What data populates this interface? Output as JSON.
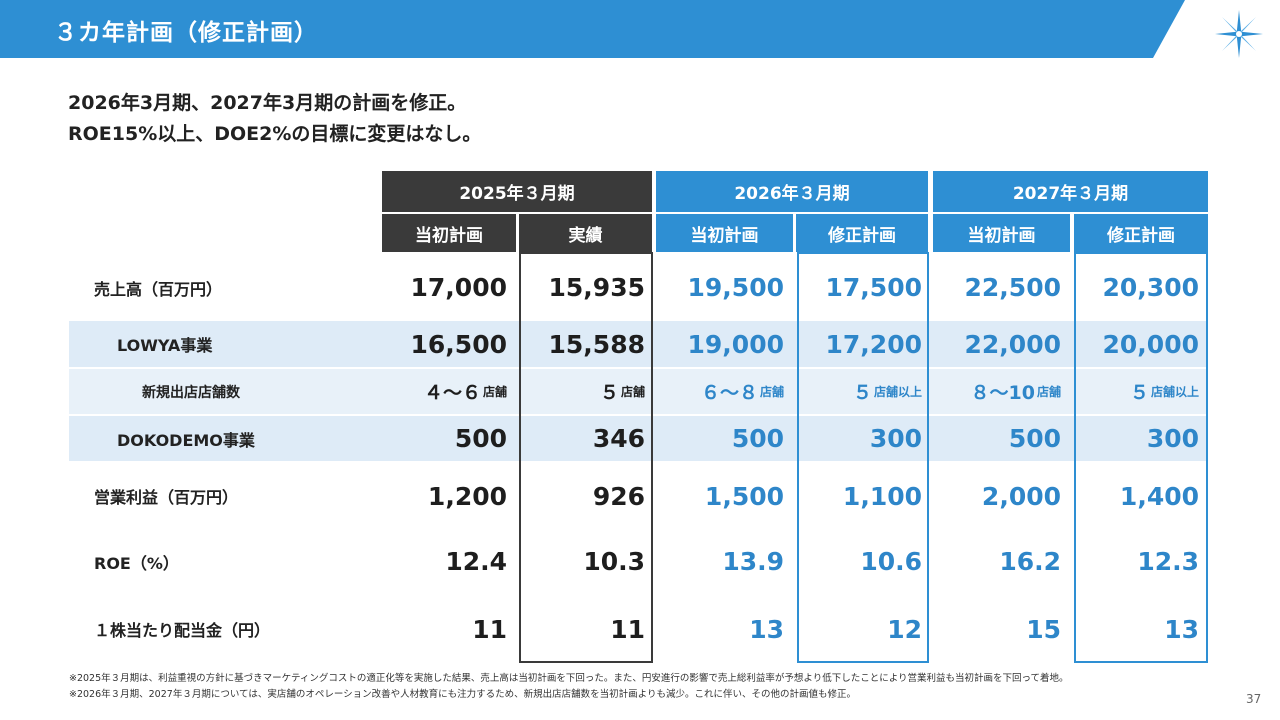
{
  "header": {
    "title": "３カ年計画（修正計画）"
  },
  "lead": {
    "line1": "2026年3月期、2027年3月期の計画を修正。",
    "line2": "ROE15%以上、DOE2%の目標に変更はなし。"
  },
  "table": {
    "years": [
      "2025年３月期",
      "2026年３月期",
      "2027年３月期"
    ],
    "subheaders": [
      "当初計画",
      "実績",
      "当初計画",
      "修正計画",
      "当初計画",
      "修正計画"
    ],
    "rows": [
      {
        "label": "売上高（百万円）",
        "values": [
          "17,000",
          "15,935",
          "19,500",
          "17,500",
          "22,500",
          "20,300"
        ]
      },
      {
        "label": "LOWYA事業",
        "values": [
          "16,500",
          "15,588",
          "19,000",
          "17,200",
          "22,000",
          "20,000"
        ]
      },
      {
        "label": "新規出店店舗数",
        "values": [
          "４～６",
          "５",
          "６～８",
          "５",
          "８～10",
          "５"
        ],
        "suffixes": [
          "店舗",
          "店舗",
          "店舗",
          "店舗以上",
          "店舗",
          "店舗以上"
        ]
      },
      {
        "label": "DOKODEMO事業",
        "values": [
          "500",
          "346",
          "500",
          "300",
          "500",
          "300"
        ]
      },
      {
        "label": "営業利益（百万円）",
        "values": [
          "1,200",
          "926",
          "1,500",
          "1,100",
          "2,000",
          "1,400"
        ]
      },
      {
        "label": "ROE（%）",
        "values": [
          "12.4",
          "10.3",
          "13.9",
          "10.6",
          "16.2",
          "12.3"
        ]
      },
      {
        "label": "１株当たり配当金（円）",
        "values": [
          "11",
          "11",
          "13",
          "12",
          "15",
          "13"
        ]
      }
    ]
  },
  "footnotes": [
    "※2025年３月期は、利益重視の方針に基づきマーケティングコストの適正化等を実施した結果、売上高は当初計画を下回った。また、円安進行の影響で売上総利益率が予想より低下したことにより営業利益も当初計画を下回って着地。",
    "※2026年３月期、2027年３月期については、実店舗のオペレーション改善や人材教育にも注力するため、新規出店店舗数を当初計画よりも減少。これに伴い、その他の計画値も修正。"
  ],
  "page_number": "37",
  "colors": {
    "brand_blue": "#2e8fd3",
    "dark_header": "#3a3a3a",
    "value_blue": "#2e86c9",
    "row_shade": "#deebf7"
  },
  "icons": {
    "logo": "compass-star-icon"
  }
}
